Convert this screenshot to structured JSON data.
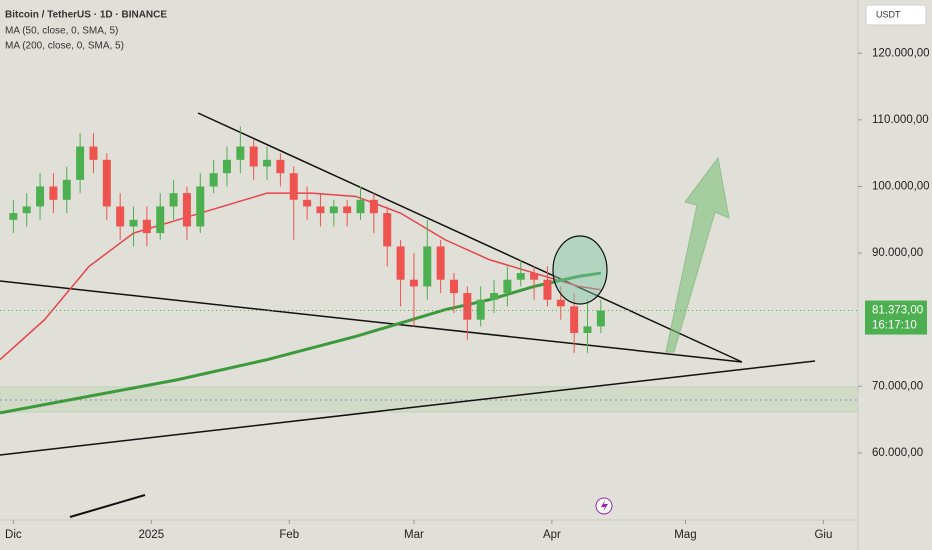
{
  "chart_data": {
    "type": "candlestick",
    "title": "Bitcoin / TetherUS · 1D · BINANCE",
    "currency": "USDT",
    "x": [
      0,
      3,
      6,
      9,
      12,
      15,
      18,
      21,
      24,
      27,
      30,
      33,
      36,
      39,
      42,
      45,
      48,
      51,
      54,
      57,
      60,
      63,
      66,
      69,
      72,
      75,
      78,
      81,
      84,
      87,
      90,
      93,
      96,
      99,
      102,
      105,
      108,
      111,
      114,
      117,
      120,
      123,
      126,
      129,
      132
    ],
    "ohlc": [
      [
        95000,
        98000,
        93000,
        96000
      ],
      [
        96000,
        99000,
        94000,
        97000
      ],
      [
        97000,
        102000,
        95000,
        100000
      ],
      [
        100000,
        102000,
        96000,
        98000
      ],
      [
        98000,
        103000,
        96000,
        101000
      ],
      [
        101000,
        108000,
        99000,
        106000
      ],
      [
        106000,
        108000,
        102000,
        104000
      ],
      [
        104000,
        105000,
        95000,
        97000
      ],
      [
        97000,
        99000,
        92000,
        94000
      ],
      [
        94000,
        97000,
        91000,
        95000
      ],
      [
        95000,
        97000,
        91000,
        93000
      ],
      [
        93000,
        99000,
        92000,
        97000
      ],
      [
        97000,
        101000,
        95000,
        99000
      ],
      [
        99000,
        100000,
        92000,
        94000
      ],
      [
        94000,
        102000,
        93000,
        100000
      ],
      [
        100000,
        104000,
        99000,
        102000
      ],
      [
        102000,
        106000,
        100000,
        104000
      ],
      [
        104000,
        109000,
        102000,
        106000
      ],
      [
        106000,
        107000,
        101000,
        103000
      ],
      [
        103000,
        106000,
        101000,
        104000
      ],
      [
        104000,
        105000,
        100000,
        102000
      ],
      [
        102000,
        103000,
        92000,
        98000
      ],
      [
        98000,
        100000,
        95000,
        97000
      ],
      [
        97000,
        99000,
        94000,
        96000
      ],
      [
        96000,
        98000,
        94000,
        97000
      ],
      [
        97000,
        98000,
        94000,
        96000
      ],
      [
        96000,
        100000,
        95000,
        98000
      ],
      [
        98000,
        99000,
        93000,
        96000
      ],
      [
        96000,
        97000,
        88000,
        91000
      ],
      [
        91000,
        92000,
        82000,
        86000
      ],
      [
        86000,
        90000,
        79000,
        85000
      ],
      [
        85000,
        95000,
        83000,
        91000
      ],
      [
        91000,
        92000,
        84000,
        86000
      ],
      [
        86000,
        87000,
        81000,
        84000
      ],
      [
        84000,
        85000,
        77000,
        80000
      ],
      [
        80000,
        85000,
        79000,
        83000
      ],
      [
        83000,
        86000,
        81000,
        84000
      ],
      [
        84000,
        88000,
        82000,
        86000
      ],
      [
        86000,
        89000,
        85000,
        87000
      ],
      [
        87000,
        88000,
        83000,
        86000
      ],
      [
        86000,
        88000,
        82000,
        83000
      ],
      [
        83000,
        85000,
        80000,
        82000
      ],
      [
        82000,
        84000,
        75000,
        78000
      ],
      [
        78000,
        83000,
        75000,
        79000
      ],
      [
        79000,
        83000,
        78000,
        81373
      ]
    ],
    "value_labels": [
      null,
      null,
      null,
      null,
      null,
      null,
      null,
      null,
      null,
      null,
      null,
      null,
      null,
      null,
      null,
      null,
      null,
      null,
      null,
      null,
      null,
      null,
      null,
      null,
      null,
      null,
      null,
      null,
      null,
      null,
      null,
      null,
      null,
      null,
      null,
      null,
      null,
      null,
      null,
      null,
      null,
      null,
      null,
      null,
      "81.373,00"
    ],
    "countdown": "16:17:10",
    "up_color": "#4caf50",
    "down_color": "#ef5350",
    "ma_series": [
      {
        "name": "MA (50, close, 0, SMA, 5)",
        "color": "#e8434a",
        "x": [
          -3,
          7,
          17,
          27,
          37,
          47,
          57,
          67,
          77,
          87,
          97,
          107,
          117,
          127,
          132
        ],
        "values": [
          74000,
          80000,
          88000,
          93000,
          95000,
          97000,
          99000,
          99000,
          98500,
          96000,
          92000,
          89000,
          87000,
          85000,
          84500
        ]
      },
      {
        "name": "MA (200, close, 0, SMA, 5)",
        "color": "#3c9a3c",
        "x": [
          -3,
          17,
          37,
          57,
          77,
          87,
          97,
          107,
          117,
          127,
          132
        ],
        "values": [
          66000,
          68500,
          71000,
          74000,
          77500,
          79500,
          81500,
          83000,
          85000,
          86500,
          87000
        ]
      }
    ],
    "xlim": [
      -3,
      190
    ],
    "ylim": [
      50000,
      128000
    ],
    "xticks": [
      {
        "value": 0,
        "label": "Dic"
      },
      {
        "value": 31,
        "label": "2025"
      },
      {
        "value": 62,
        "label": "Feb"
      },
      {
        "value": 90,
        "label": "Mar"
      },
      {
        "value": 121,
        "label": "Apr"
      },
      {
        "value": 151,
        "label": "Mag"
      },
      {
        "value": 182,
        "label": "Giu"
      }
    ],
    "yticks": [
      {
        "value": 60000,
        "label": "60.000,00"
      },
      {
        "value": 70000,
        "label": "70.000,00"
      },
      {
        "value": 90000,
        "label": "90.000,00"
      },
      {
        "value": 100000,
        "label": "100.000,00"
      },
      {
        "value": 110000,
        "label": "110.000,00"
      },
      {
        "value": 120000,
        "label": "120.000,00"
      }
    ],
    "grid": false
  }
}
